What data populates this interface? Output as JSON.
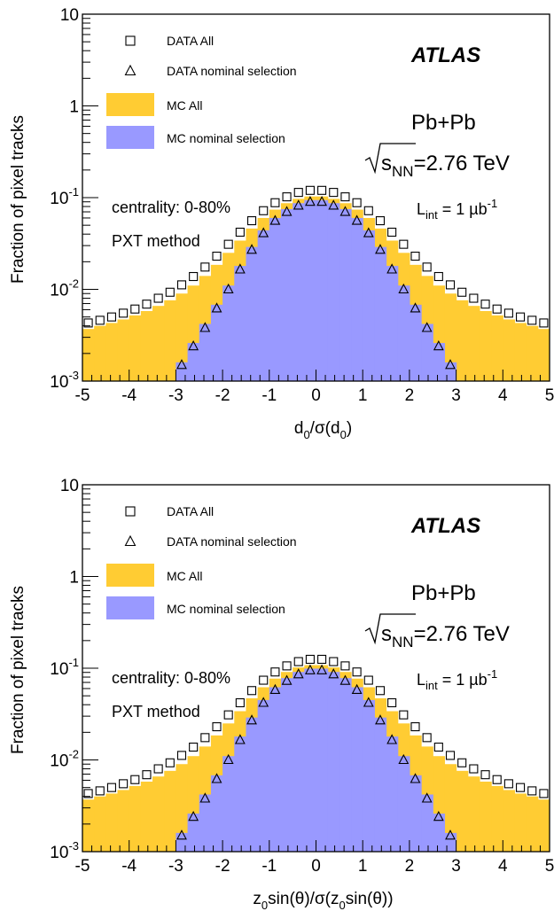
{
  "chart_data": [
    {
      "type": "histogram",
      "xlabel": "d0/σ(d0)",
      "ylabel": "Fraction of pixel tracks",
      "xlim": [
        -5,
        5
      ],
      "ylim": [
        0.001,
        10
      ],
      "yscale": "log",
      "x_ticks": [
        "-5",
        "-4",
        "-3",
        "-2",
        "-1",
        "0",
        "1",
        "2",
        "3",
        "4",
        "5"
      ],
      "y_ticks": [
        {
          "base": "10",
          "exp": "-3"
        },
        {
          "base": "10",
          "exp": "-2"
        },
        {
          "base": "10",
          "exp": "-1"
        },
        {
          "base": "1",
          "exp": ""
        },
        {
          "base": "10",
          "exp": ""
        }
      ],
      "bin_centers": [
        -4.875,
        -4.625,
        -4.375,
        -4.125,
        -3.875,
        -3.625,
        -3.375,
        -3.125,
        -2.875,
        -2.625,
        -2.375,
        -2.125,
        -1.875,
        -1.625,
        -1.375,
        -1.125,
        -0.875,
        -0.625,
        -0.375,
        -0.125,
        0.125,
        0.375,
        0.625,
        0.875,
        1.125,
        1.375,
        1.625,
        1.875,
        2.125,
        2.375,
        2.625,
        2.875,
        3.125,
        3.375,
        3.625,
        3.875,
        4.125,
        4.375,
        4.625,
        4.875
      ],
      "series": [
        {
          "name": "MC All",
          "kind": "fill",
          "color": "#FFCC33",
          "values": [
            0.0037,
            0.004,
            0.0043,
            0.0047,
            0.0052,
            0.0058,
            0.0066,
            0.0076,
            0.009,
            0.011,
            0.014,
            0.0185,
            0.025,
            0.034,
            0.046,
            0.06,
            0.074,
            0.087,
            0.097,
            0.103,
            0.103,
            0.097,
            0.087,
            0.074,
            0.06,
            0.046,
            0.034,
            0.025,
            0.0185,
            0.014,
            0.011,
            0.009,
            0.0076,
            0.0066,
            0.0058,
            0.0052,
            0.0047,
            0.0043,
            0.004,
            0.0037
          ]
        },
        {
          "name": "MC nominal selection",
          "kind": "fill",
          "color": "#9999FF",
          "values": [
            null,
            null,
            null,
            null,
            null,
            null,
            null,
            null,
            0.0016,
            0.0026,
            0.0042,
            0.0068,
            0.011,
            0.018,
            0.029,
            0.044,
            0.06,
            0.075,
            0.087,
            0.094,
            0.094,
            0.087,
            0.075,
            0.06,
            0.044,
            0.029,
            0.018,
            0.011,
            0.0068,
            0.0042,
            0.0026,
            0.0016,
            null,
            null,
            null,
            null,
            null,
            null,
            null,
            null
          ]
        },
        {
          "name": "DATA All",
          "kind": "marker",
          "marker": "square",
          "values": [
            0.0043,
            0.0046,
            0.005,
            0.0055,
            0.0061,
            0.0069,
            0.008,
            0.0093,
            0.0112,
            0.0138,
            0.0175,
            0.023,
            0.031,
            0.042,
            0.056,
            0.072,
            0.088,
            0.102,
            0.114,
            0.12,
            0.12,
            0.114,
            0.102,
            0.088,
            0.072,
            0.056,
            0.042,
            0.031,
            0.023,
            0.0175,
            0.0138,
            0.0112,
            0.0093,
            0.008,
            0.0069,
            0.0061,
            0.0055,
            0.005,
            0.0046,
            0.0043
          ]
        },
        {
          "name": "DATA nominal selection",
          "kind": "marker",
          "marker": "triangle",
          "values": [
            null,
            null,
            null,
            null,
            null,
            null,
            null,
            null,
            0.0015,
            0.0024,
            0.0038,
            0.0062,
            0.01,
            0.0165,
            0.027,
            0.041,
            0.056,
            0.07,
            0.082,
            0.09,
            0.09,
            0.082,
            0.07,
            0.056,
            0.041,
            0.027,
            0.0165,
            0.01,
            0.0062,
            0.0038,
            0.0024,
            0.0015,
            null,
            null,
            null,
            null,
            null,
            null,
            null,
            null
          ]
        }
      ],
      "annotations": {
        "atlas": "ATLAS",
        "collision": "Pb+Pb",
        "sqrt_s": "=2.76 TeV",
        "sqrt_s_sub": "NN",
        "lumi": "= 1 µb",
        "lumi_sub": "int",
        "lumi_sup": "-1",
        "centrality": "centrality: 0-80%",
        "method": "PXT method"
      }
    },
    {
      "type": "histogram",
      "xlabel": "z0sin(θ)/σ(z0sin(θ))",
      "ylabel": "Fraction of pixel tracks",
      "xlim": [
        -5,
        5
      ],
      "ylim": [
        0.001,
        10
      ],
      "yscale": "log",
      "x_ticks": [
        "-5",
        "-4",
        "-3",
        "-2",
        "-1",
        "0",
        "1",
        "2",
        "3",
        "4",
        "5"
      ],
      "y_ticks": [
        {
          "base": "10",
          "exp": "-3"
        },
        {
          "base": "10",
          "exp": "-2"
        },
        {
          "base": "10",
          "exp": "-1"
        },
        {
          "base": "1",
          "exp": ""
        },
        {
          "base": "10",
          "exp": ""
        }
      ],
      "bin_centers": [
        -4.875,
        -4.625,
        -4.375,
        -4.125,
        -3.875,
        -3.625,
        -3.375,
        -3.125,
        -2.875,
        -2.625,
        -2.375,
        -2.125,
        -1.875,
        -1.625,
        -1.375,
        -1.125,
        -0.875,
        -0.625,
        -0.375,
        -0.125,
        0.125,
        0.375,
        0.625,
        0.875,
        1.125,
        1.375,
        1.625,
        1.875,
        2.125,
        2.375,
        2.625,
        2.875,
        3.125,
        3.375,
        3.625,
        3.875,
        4.125,
        4.375,
        4.625,
        4.875
      ],
      "series": [
        {
          "name": "MC All",
          "kind": "fill",
          "color": "#FFCC33",
          "values": [
            0.0037,
            0.004,
            0.0043,
            0.0047,
            0.0052,
            0.0058,
            0.0066,
            0.0076,
            0.009,
            0.011,
            0.014,
            0.0185,
            0.025,
            0.034,
            0.047,
            0.062,
            0.077,
            0.091,
            0.102,
            0.108,
            0.108,
            0.102,
            0.091,
            0.077,
            0.062,
            0.047,
            0.034,
            0.025,
            0.0185,
            0.014,
            0.011,
            0.009,
            0.0076,
            0.0066,
            0.0058,
            0.0052,
            0.0047,
            0.0043,
            0.004,
            0.0037
          ]
        },
        {
          "name": "MC nominal selection",
          "kind": "fill",
          "color": "#9999FF",
          "values": [
            null,
            null,
            null,
            null,
            null,
            null,
            null,
            null,
            0.0016,
            0.0026,
            0.0042,
            0.0068,
            0.011,
            0.018,
            0.029,
            0.045,
            0.062,
            0.078,
            0.091,
            0.099,
            0.099,
            0.091,
            0.078,
            0.062,
            0.045,
            0.029,
            0.018,
            0.011,
            0.0068,
            0.0042,
            0.0026,
            0.0016,
            null,
            null,
            null,
            null,
            null,
            null,
            null,
            null
          ]
        },
        {
          "name": "DATA All",
          "kind": "marker",
          "marker": "square",
          "values": [
            0.0043,
            0.0046,
            0.005,
            0.0055,
            0.0061,
            0.0069,
            0.008,
            0.0093,
            0.0112,
            0.0138,
            0.0175,
            0.023,
            0.031,
            0.042,
            0.057,
            0.074,
            0.091,
            0.106,
            0.118,
            0.125,
            0.125,
            0.118,
            0.106,
            0.091,
            0.074,
            0.057,
            0.042,
            0.031,
            0.023,
            0.0175,
            0.0138,
            0.0112,
            0.0093,
            0.008,
            0.0069,
            0.0061,
            0.0055,
            0.005,
            0.0046,
            0.0043
          ]
        },
        {
          "name": "DATA nominal selection",
          "kind": "marker",
          "marker": "triangle",
          "values": [
            null,
            null,
            null,
            null,
            null,
            null,
            null,
            null,
            0.0015,
            0.0024,
            0.0038,
            0.0062,
            0.01,
            0.0165,
            0.027,
            0.042,
            0.058,
            0.073,
            0.086,
            0.095,
            0.095,
            0.086,
            0.073,
            0.058,
            0.042,
            0.027,
            0.0165,
            0.01,
            0.0062,
            0.0038,
            0.0024,
            0.0015,
            null,
            null,
            null,
            null,
            null,
            null,
            null,
            null
          ]
        }
      ],
      "annotations": {
        "atlas": "ATLAS",
        "collision": "Pb+Pb",
        "sqrt_s": "=2.76 TeV",
        "sqrt_s_sub": "NN",
        "lumi": "= 1 µb",
        "lumi_sub": "int",
        "lumi_sup": "-1",
        "centrality": "centrality: 0-80%",
        "method": "PXT method"
      }
    }
  ],
  "xlabels_rich": [
    [
      {
        "t": "d"
      },
      {
        "t": "0",
        "sub": true
      },
      {
        "t": "/σ(d"
      },
      {
        "t": "0",
        "sub": true
      },
      {
        "t": ")"
      }
    ],
    [
      {
        "t": "z"
      },
      {
        "t": "0",
        "sub": true
      },
      {
        "t": "sin(θ)/σ(z"
      },
      {
        "t": "0",
        "sub": true
      },
      {
        "t": "sin(θ))"
      }
    ]
  ]
}
